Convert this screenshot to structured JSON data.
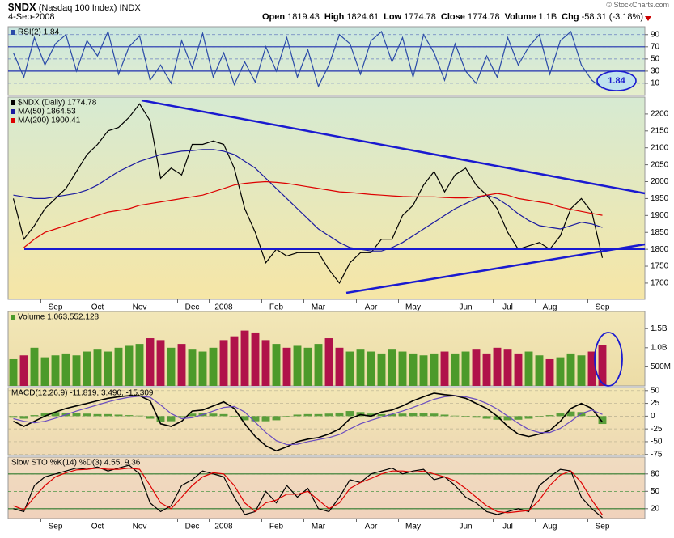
{
  "header": {
    "symbol": "$NDX",
    "name": "(Nasdaq 100 Index)",
    "exchange": "INDX",
    "date": "4-Sep-2008",
    "credit": "© StockCharts.com",
    "quote": [
      {
        "label": "Open",
        "value": 1819.43
      },
      {
        "label": "High",
        "value": 1824.61
      },
      {
        "label": "Low",
        "value": 1774.78
      },
      {
        "label": "Close",
        "value": 1774.78
      },
      {
        "label": "Volume",
        "value": "1.1B"
      },
      {
        "label": "Chg",
        "value": "-58.31 (-3.18%)"
      }
    ]
  },
  "chart_data": [
    {
      "type": "line",
      "annotation": "1.84",
      "ylim": [
        -10,
        103
      ],
      "yticks": [
        10,
        30,
        50,
        70,
        90
      ],
      "grid": true,
      "grid_color": "#6a7fc0",
      "bands": [
        30,
        70
      ],
      "band_color": "#1f2fb0",
      "series": [
        {
          "name": "RSI(2) 1.84",
          "color": "#2a4aa8",
          "values": [
            60,
            20,
            85,
            40,
            75,
            90,
            30,
            80,
            55,
            95,
            25,
            70,
            88,
            15,
            40,
            10,
            80,
            35,
            92,
            20,
            60,
            8,
            45,
            12,
            70,
            30,
            85,
            20,
            65,
            5,
            40,
            90,
            75,
            25,
            80,
            95,
            45,
            85,
            20,
            90,
            60,
            15,
            75,
            30,
            10,
            55,
            20,
            85,
            40,
            70,
            90,
            25,
            80,
            95,
            40,
            15,
            1.84
          ]
        }
      ]
    },
    {
      "type": "line",
      "ylim": [
        1652,
        2250
      ],
      "yticks": [
        1700,
        1750,
        1800,
        1850,
        1900,
        1950,
        2000,
        2050,
        2100,
        2150,
        2200
      ],
      "grid": false,
      "categories": [
        null,
        null,
        null,
        null,
        "Sep",
        null,
        null,
        null,
        "Oct",
        null,
        null,
        null,
        "Nov",
        null,
        null,
        null,
        null,
        "Dec",
        null,
        null,
        "2008",
        null,
        null,
        null,
        null,
        "Feb",
        null,
        null,
        null,
        "Mar",
        null,
        null,
        null,
        null,
        "Apr",
        null,
        null,
        null,
        "May",
        null,
        null,
        null,
        null,
        "Jun",
        null,
        null,
        null,
        "Jul",
        null,
        null,
        null,
        "Aug",
        null,
        null,
        null,
        null,
        "Sep"
      ],
      "series": [
        {
          "name": "$NDX (Daily) 1774.78",
          "color": "#000000",
          "values": [
            1950,
            1830,
            1870,
            1920,
            1950,
            1980,
            2030,
            2080,
            2110,
            2150,
            2160,
            2190,
            2230,
            2180,
            2010,
            2040,
            2020,
            2110,
            2110,
            2120,
            2110,
            2040,
            1920,
            1850,
            1760,
            1800,
            1780,
            1790,
            1790,
            1790,
            1740,
            1700,
            1760,
            1790,
            1790,
            1830,
            1830,
            1900,
            1930,
            1990,
            2030,
            1970,
            2020,
            2040,
            1990,
            1960,
            1920,
            1850,
            1800,
            1810,
            1820,
            1800,
            1840,
            1920,
            1950,
            1910,
            1774.78
          ]
        },
        {
          "name": "MA(50) 1864.53",
          "color": "#1a1aa0",
          "values": [
            1960,
            1955,
            1950,
            1950,
            1955,
            1960,
            1965,
            1975,
            1990,
            2010,
            2030,
            2045,
            2060,
            2070,
            2080,
            2085,
            2090,
            2092,
            2095,
            2095,
            2090,
            2080,
            2060,
            2040,
            2010,
            1980,
            1950,
            1920,
            1890,
            1860,
            1840,
            1820,
            1805,
            1800,
            1795,
            1795,
            1805,
            1820,
            1840,
            1860,
            1880,
            1900,
            1920,
            1935,
            1950,
            1960,
            1950,
            1930,
            1905,
            1885,
            1870,
            1865,
            1860,
            1870,
            1880,
            1875,
            1864.53
          ]
        },
        {
          "name": "MA(200) 1900.41",
          "color": "#dd0000",
          "values": [
            null,
            1805,
            1830,
            1850,
            1860,
            1870,
            1880,
            1890,
            1900,
            1910,
            1915,
            1920,
            1930,
            1935,
            1940,
            1945,
            1950,
            1955,
            1960,
            1970,
            1980,
            1990,
            1995,
            1998,
            2000,
            1998,
            1995,
            1990,
            1985,
            1980,
            1975,
            1970,
            1968,
            1965,
            1962,
            1960,
            1958,
            1956,
            1955,
            1955,
            1955,
            1953,
            1952,
            1952,
            1955,
            1960,
            1965,
            1960,
            1950,
            1945,
            1940,
            1935,
            1925,
            1918,
            1912,
            1906,
            1900.41
          ]
        }
      ]
    },
    {
      "type": "bar",
      "ylim": [
        0,
        1950000000
      ],
      "yticks": [
        {
          "value": 500000000,
          "label": "500M"
        },
        {
          "value": 1000000000,
          "label": "1.0B"
        },
        {
          "value": 1500000000,
          "label": "1.5B"
        }
      ],
      "grid": false,
      "up_color": "#4c9a2a",
      "down_color": "#b0124a",
      "series": [
        {
          "name": "Volume 1,063,552,128",
          "values": [
            700000000,
            800000000,
            1000000000,
            750000000,
            800000000,
            850000000,
            800000000,
            900000000,
            950000000,
            900000000,
            1000000000,
            1050000000,
            1100000000,
            1250000000,
            1200000000,
            1000000000,
            1100000000,
            950000000,
            900000000,
            1000000000,
            1200000000,
            1300000000,
            1450000000,
            1400000000,
            1200000000,
            1100000000,
            1000000000,
            1050000000,
            1000000000,
            1100000000,
            1250000000,
            1000000000,
            900000000,
            950000000,
            900000000,
            850000000,
            950000000,
            900000000,
            850000000,
            800000000,
            850000000,
            900000000,
            850000000,
            900000000,
            950000000,
            850000000,
            1000000000,
            950000000,
            850000000,
            900000000,
            800000000,
            700000000,
            750000000,
            850000000,
            800000000,
            900000000,
            1063552128
          ]
        }
      ]
    },
    {
      "type": "line",
      "title": "MACD(12,26,9) -11.819, 3.490, -15.309",
      "ylim": [
        -77,
        56
      ],
      "yticks": [
        -75,
        -50,
        -25,
        0,
        25,
        50
      ],
      "grid": true,
      "grid_color": "#b8b090",
      "series": [
        {
          "type": "bar",
          "color": "#5a9e3a",
          "values": [
            -3,
            -5,
            2,
            6,
            8,
            7,
            6,
            5,
            4,
            4,
            3,
            2,
            1,
            -5,
            -12,
            -10,
            -3,
            5,
            6,
            5,
            4,
            -2,
            -8,
            -10,
            -10,
            -8,
            -2,
            3,
            4,
            4,
            5,
            7,
            10,
            8,
            5,
            4,
            4,
            5,
            6,
            6,
            5,
            3,
            1,
            -1,
            -3,
            -5,
            -7,
            -8,
            -7,
            -5,
            -1,
            2,
            6,
            9,
            8,
            -2,
            -15.309
          ]
        },
        {
          "color": "#000000",
          "values": [
            -10,
            -20,
            -10,
            0,
            8,
            15,
            20,
            25,
            30,
            35,
            38,
            40,
            40,
            30,
            -15,
            -20,
            -10,
            10,
            12,
            20,
            28,
            15,
            -15,
            -40,
            -58,
            -68,
            -60,
            -50,
            -45,
            -42,
            -35,
            -25,
            -5,
            3,
            0,
            8,
            12,
            20,
            30,
            38,
            45,
            42,
            40,
            35,
            25,
            15,
            0,
            -20,
            -35,
            -40,
            -35,
            -28,
            -10,
            15,
            25,
            15,
            -11.819
          ]
        },
        {
          "color": "#6a4cc0",
          "values": [
            -5,
            -10,
            -13,
            -10,
            -4,
            3,
            10,
            16,
            22,
            28,
            33,
            37,
            39,
            37,
            22,
            5,
            -5,
            -3,
            3,
            10,
            17,
            19,
            8,
            -12,
            -32,
            -48,
            -56,
            -55,
            -50,
            -46,
            -42,
            -36,
            -25,
            -15,
            -8,
            -2,
            4,
            10,
            17,
            25,
            33,
            38,
            40,
            38,
            33,
            25,
            14,
            0,
            -14,
            -26,
            -32,
            -32,
            -24,
            -10,
            5,
            12,
            3.49
          ]
        }
      ]
    },
    {
      "type": "line",
      "title": "Slow STO %K(14) %D(3) 4.55, 9.36",
      "ylim": [
        3,
        109
      ],
      "yticks": [
        20,
        50,
        80
      ],
      "grid": true,
      "grid_color": "#2f8a2f",
      "bands": [
        20,
        80
      ],
      "band_color": "#2f7a2f",
      "categories": [
        null,
        null,
        null,
        null,
        "Sep",
        null,
        null,
        null,
        "Oct",
        null,
        null,
        null,
        "Nov",
        null,
        null,
        null,
        null,
        "Dec",
        null,
        null,
        "2008",
        null,
        null,
        null,
        null,
        "Feb",
        null,
        null,
        null,
        "Mar",
        null,
        null,
        null,
        null,
        "Apr",
        null,
        null,
        null,
        "May",
        null,
        null,
        null,
        null,
        "Jun",
        null,
        null,
        null,
        "Jul",
        null,
        null,
        null,
        "Aug",
        null,
        null,
        null,
        null,
        "Sep"
      ],
      "series": [
        {
          "color": "#000000",
          "values": [
            20,
            15,
            60,
            75,
            80,
            85,
            90,
            88,
            92,
            85,
            90,
            95,
            80,
            30,
            15,
            25,
            60,
            70,
            85,
            80,
            75,
            40,
            10,
            15,
            50,
            30,
            60,
            40,
            55,
            20,
            15,
            40,
            70,
            65,
            80,
            85,
            90,
            80,
            85,
            88,
            70,
            75,
            60,
            40,
            30,
            15,
            10,
            15,
            20,
            15,
            60,
            75,
            88,
            85,
            40,
            20,
            4.55
          ]
        },
        {
          "color": "#dd0000",
          "values": [
            25,
            18,
            40,
            60,
            75,
            82,
            87,
            88,
            90,
            88,
            88,
            90,
            88,
            60,
            30,
            20,
            40,
            60,
            75,
            82,
            80,
            60,
            30,
            15,
            30,
            35,
            45,
            45,
            50,
            35,
            20,
            30,
            55,
            65,
            72,
            80,
            85,
            85,
            83,
            85,
            80,
            75,
            68,
            55,
            40,
            25,
            15,
            13,
            15,
            17,
            35,
            60,
            78,
            85,
            65,
            35,
            9.36
          ]
        }
      ]
    }
  ]
}
